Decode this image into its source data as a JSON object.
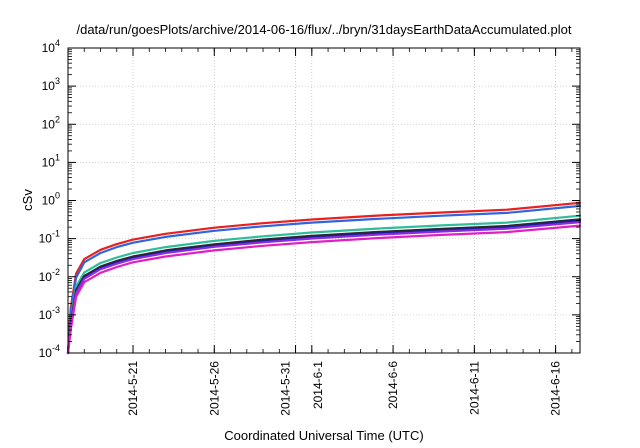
{
  "chart_data": {
    "type": "line",
    "title": "/data/run/goesPlots/archive/2014-06-16/flux/../bryn/31daysEarthDataAccumulated.plot",
    "xlabel": "Coordinated Universal Time (UTC)",
    "ylabel": "cSv",
    "y_scale": "log",
    "ylim": [
      0.0001,
      10000
    ],
    "y_ticks": [
      {
        "base": "10",
        "exp": "-4",
        "value": 0.0001
      },
      {
        "base": "10",
        "exp": "-3",
        "value": 0.001
      },
      {
        "base": "10",
        "exp": "-2",
        "value": 0.01
      },
      {
        "base": "10",
        "exp": "-1",
        "value": 0.1
      },
      {
        "base": "10",
        "exp": "0",
        "value": 1
      },
      {
        "base": "10",
        "exp": "1",
        "value": 10
      },
      {
        "base": "10",
        "exp": "2",
        "value": 100
      },
      {
        "base": "10",
        "exp": "3",
        "value": 1000
      },
      {
        "base": "10",
        "exp": "4",
        "value": 10000
      }
    ],
    "xlim": [
      "2014-05-17",
      "2014-06-17 12:00"
    ],
    "x_ticks": [
      {
        "label": "2014-5-21",
        "date": "2014-05-21"
      },
      {
        "label": "2014-5-26",
        "date": "2014-05-26"
      },
      {
        "label": "2014-5-31",
        "date": "2014-05-31"
      },
      {
        "label": "2014-6-1",
        "date": "2014-06-01"
      },
      {
        "label": "2014-6-6",
        "date": "2014-06-06"
      },
      {
        "label": "2014-6-11",
        "date": "2014-06-11"
      },
      {
        "label": "2014-6-16",
        "date": "2014-06-16"
      }
    ],
    "grid": true,
    "legend": "none",
    "x": [
      "2014-05-17",
      "2014-05-17 04:00",
      "2014-05-17 12:00",
      "2014-05-18",
      "2014-05-19",
      "2014-05-20",
      "2014-05-21",
      "2014-05-23",
      "2014-05-26",
      "2014-05-29",
      "2014-06-01",
      "2014-06-05",
      "2014-06-09",
      "2014-06-13",
      "2014-06-17 12:00"
    ],
    "series": [
      {
        "color": "#e8201f",
        "values": [
          0.0001,
          0.0015,
          0.012,
          0.029,
          0.051,
          0.072,
          0.094,
          0.134,
          0.193,
          0.254,
          0.318,
          0.401,
          0.484,
          0.573,
          0.87
        ]
      },
      {
        "color": "#2f66e0",
        "values": [
          0.0001,
          0.0012,
          0.0095,
          0.024,
          0.042,
          0.06,
          0.078,
          0.111,
          0.16,
          0.21,
          0.263,
          0.33,
          0.399,
          0.472,
          0.72
        ]
      },
      {
        "color": "#2fbd9a",
        "values": [
          0.0001,
          0.0007,
          0.0055,
          0.013,
          0.023,
          0.032,
          0.042,
          0.06,
          0.087,
          0.115,
          0.145,
          0.183,
          0.222,
          0.264,
          0.4
        ]
      },
      {
        "color": "#2a2a2a",
        "values": [
          0.0001,
          0.0006,
          0.0045,
          0.0105,
          0.0185,
          0.026,
          0.034,
          0.049,
          0.071,
          0.094,
          0.118,
          0.149,
          0.181,
          0.215,
          0.32
        ]
      },
      {
        "color": "#1a1f8f",
        "values": [
          0.0001,
          0.0005,
          0.004,
          0.0096,
          0.017,
          0.024,
          0.031,
          0.045,
          0.065,
          0.086,
          0.108,
          0.137,
          0.166,
          0.198,
          0.3
        ]
      },
      {
        "color": "#8a2be2",
        "values": [
          0.0001,
          0.0005,
          0.0037,
          0.0089,
          0.0158,
          0.022,
          0.029,
          0.042,
          0.061,
          0.08,
          0.101,
          0.127,
          0.154,
          0.183,
          0.27
        ]
      },
      {
        "color": "#e020c0",
        "values": [
          0.0001,
          0.0004,
          0.003,
          0.0072,
          0.0127,
          0.018,
          0.024,
          0.034,
          0.049,
          0.065,
          0.081,
          0.103,
          0.125,
          0.148,
          0.22
        ]
      }
    ]
  }
}
